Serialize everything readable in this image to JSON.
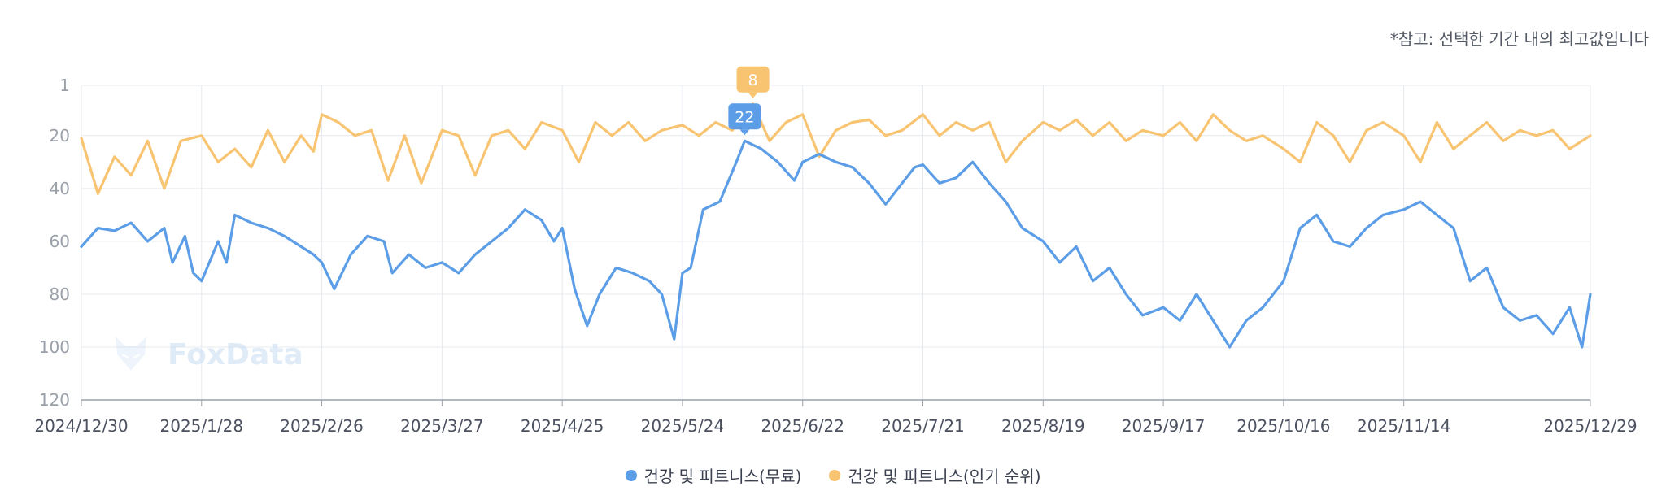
{
  "note": "*참고: 선택한 기간 내의 최고값입니다",
  "watermark": "FoxData",
  "chart_data": {
    "type": "line",
    "x_range": [
      "2024/12/30",
      "2025/12/29"
    ],
    "x_ticks": [
      "2024/12/30",
      "2025/1/28",
      "2025/2/26",
      "2025/3/27",
      "2025/4/25",
      "2025/5/24",
      "2025/6/22",
      "2025/7/21",
      "2025/8/19",
      "2025/9/17",
      "2025/10/16",
      "2025/11/14",
      "2025/12/29"
    ],
    "y_ticks": [
      1,
      20,
      40,
      60,
      80,
      100,
      120
    ],
    "ylim": [
      120,
      1
    ],
    "y_reversed": true,
    "grid": true,
    "legend_position": "bottom-center",
    "series": [
      {
        "name": "건강 및 피트니스(무료)",
        "color": "#5b9de6",
        "points": [
          [
            "2024/12/30",
            62
          ],
          [
            "2025/1/3",
            55
          ],
          [
            "2025/1/7",
            56
          ],
          [
            "2025/1/11",
            53
          ],
          [
            "2025/1/15",
            60
          ],
          [
            "2025/1/19",
            55
          ],
          [
            "2025/1/21",
            68
          ],
          [
            "2025/1/24",
            58
          ],
          [
            "2025/1/26",
            72
          ],
          [
            "2025/1/28",
            75
          ],
          [
            "2025/2/1",
            60
          ],
          [
            "2025/2/3",
            68
          ],
          [
            "2025/2/5",
            50
          ],
          [
            "2025/2/9",
            53
          ],
          [
            "2025/2/13",
            55
          ],
          [
            "2025/2/17",
            58
          ],
          [
            "2025/2/21",
            62
          ],
          [
            "2025/2/24",
            65
          ],
          [
            "2025/2/26",
            68
          ],
          [
            "2025/3/1",
            78
          ],
          [
            "2025/3/5",
            65
          ],
          [
            "2025/3/9",
            58
          ],
          [
            "2025/3/13",
            60
          ],
          [
            "2025/3/15",
            72
          ],
          [
            "2025/3/19",
            65
          ],
          [
            "2025/3/23",
            70
          ],
          [
            "2025/3/27",
            68
          ],
          [
            "2025/3/31",
            72
          ],
          [
            "2025/4/4",
            65
          ],
          [
            "2025/4/8",
            60
          ],
          [
            "2025/4/12",
            55
          ],
          [
            "2025/4/16",
            48
          ],
          [
            "2025/4/20",
            52
          ],
          [
            "2025/4/23",
            60
          ],
          [
            "2025/4/25",
            55
          ],
          [
            "2025/4/28",
            78
          ],
          [
            "2025/5/1",
            92
          ],
          [
            "2025/5/4",
            80
          ],
          [
            "2025/5/8",
            70
          ],
          [
            "2025/5/12",
            72
          ],
          [
            "2025/5/16",
            75
          ],
          [
            "2025/5/19",
            80
          ],
          [
            "2025/5/22",
            97
          ],
          [
            "2025/5/24",
            72
          ],
          [
            "2025/5/26",
            70
          ],
          [
            "2025/5/29",
            48
          ],
          [
            "2025/6/2",
            45
          ],
          [
            "2025/6/6",
            30
          ],
          [
            "2025/6/8",
            22
          ],
          [
            "2025/6/12",
            25
          ],
          [
            "2025/6/16",
            30
          ],
          [
            "2025/6/20",
            37
          ],
          [
            "2025/6/22",
            30
          ],
          [
            "2025/6/26",
            27
          ],
          [
            "2025/6/30",
            30
          ],
          [
            "2025/7/4",
            32
          ],
          [
            "2025/7/8",
            38
          ],
          [
            "2025/7/12",
            46
          ],
          [
            "2025/7/16",
            38
          ],
          [
            "2025/7/19",
            32
          ],
          [
            "2025/7/21",
            31
          ],
          [
            "2025/7/25",
            38
          ],
          [
            "2025/7/29",
            36
          ],
          [
            "2025/8/2",
            30
          ],
          [
            "2025/8/6",
            38
          ],
          [
            "2025/8/10",
            45
          ],
          [
            "2025/8/14",
            55
          ],
          [
            "2025/8/19",
            60
          ],
          [
            "2025/8/23",
            68
          ],
          [
            "2025/8/27",
            62
          ],
          [
            "2025/8/31",
            75
          ],
          [
            "2025/9/4",
            70
          ],
          [
            "2025/9/8",
            80
          ],
          [
            "2025/9/12",
            88
          ],
          [
            "2025/9/17",
            85
          ],
          [
            "2025/9/21",
            90
          ],
          [
            "2025/9/25",
            80
          ],
          [
            "2025/9/29",
            90
          ],
          [
            "2025/10/3",
            100
          ],
          [
            "2025/10/7",
            90
          ],
          [
            "2025/10/11",
            85
          ],
          [
            "2025/10/16",
            75
          ],
          [
            "2025/10/20",
            55
          ],
          [
            "2025/10/24",
            50
          ],
          [
            "2025/10/28",
            60
          ],
          [
            "2025/11/1",
            62
          ],
          [
            "2025/11/5",
            55
          ],
          [
            "2025/11/9",
            50
          ],
          [
            "2025/11/14",
            48
          ],
          [
            "2025/11/18",
            45
          ],
          [
            "2025/11/22",
            50
          ],
          [
            "2025/11/26",
            55
          ],
          [
            "2025/11/30",
            75
          ],
          [
            "2025/12/4",
            70
          ],
          [
            "2025/12/8",
            85
          ],
          [
            "2025/12/12",
            90
          ],
          [
            "2025/12/16",
            88
          ],
          [
            "2025/12/20",
            95
          ],
          [
            "2025/12/24",
            85
          ],
          [
            "2025/12/27",
            100
          ],
          [
            "2025/12/29",
            80
          ]
        ]
      },
      {
        "name": "건강 및 피트니스(인기 순위)",
        "color": "#f8c471",
        "points": [
          [
            "2024/12/30",
            21
          ],
          [
            "2025/1/3",
            42
          ],
          [
            "2025/1/7",
            28
          ],
          [
            "2025/1/11",
            35
          ],
          [
            "2025/1/15",
            22
          ],
          [
            "2025/1/19",
            40
          ],
          [
            "2025/1/23",
            22
          ],
          [
            "2025/1/28",
            20
          ],
          [
            "2025/2/1",
            30
          ],
          [
            "2025/2/5",
            25
          ],
          [
            "2025/2/9",
            32
          ],
          [
            "2025/2/13",
            18
          ],
          [
            "2025/2/17",
            30
          ],
          [
            "2025/2/21",
            20
          ],
          [
            "2025/2/24",
            26
          ],
          [
            "2025/2/26",
            12
          ],
          [
            "2025/3/2",
            15
          ],
          [
            "2025/3/6",
            20
          ],
          [
            "2025/3/10",
            18
          ],
          [
            "2025/3/14",
            37
          ],
          [
            "2025/3/18",
            20
          ],
          [
            "2025/3/22",
            38
          ],
          [
            "2025/3/27",
            18
          ],
          [
            "2025/3/31",
            20
          ],
          [
            "2025/4/4",
            35
          ],
          [
            "2025/4/8",
            20
          ],
          [
            "2025/4/12",
            18
          ],
          [
            "2025/4/16",
            25
          ],
          [
            "2025/4/20",
            15
          ],
          [
            "2025/4/25",
            18
          ],
          [
            "2025/4/29",
            30
          ],
          [
            "2025/5/3",
            15
          ],
          [
            "2025/5/7",
            20
          ],
          [
            "2025/5/11",
            15
          ],
          [
            "2025/5/15",
            22
          ],
          [
            "2025/5/19",
            18
          ],
          [
            "2025/5/24",
            16
          ],
          [
            "2025/5/28",
            20
          ],
          [
            "2025/6/1",
            15
          ],
          [
            "2025/6/5",
            18
          ],
          [
            "2025/6/10",
            8
          ],
          [
            "2025/6/14",
            22
          ],
          [
            "2025/6/18",
            15
          ],
          [
            "2025/6/22",
            12
          ],
          [
            "2025/6/26",
            28
          ],
          [
            "2025/6/30",
            18
          ],
          [
            "2025/7/4",
            15
          ],
          [
            "2025/7/8",
            14
          ],
          [
            "2025/7/12",
            20
          ],
          [
            "2025/7/16",
            18
          ],
          [
            "2025/7/21",
            12
          ],
          [
            "2025/7/25",
            20
          ],
          [
            "2025/7/29",
            15
          ],
          [
            "2025/8/2",
            18
          ],
          [
            "2025/8/6",
            15
          ],
          [
            "2025/8/10",
            30
          ],
          [
            "2025/8/14",
            22
          ],
          [
            "2025/8/19",
            15
          ],
          [
            "2025/8/23",
            18
          ],
          [
            "2025/8/27",
            14
          ],
          [
            "2025/8/31",
            20
          ],
          [
            "2025/9/4",
            15
          ],
          [
            "2025/9/8",
            22
          ],
          [
            "2025/9/12",
            18
          ],
          [
            "2025/9/17",
            20
          ],
          [
            "2025/9/21",
            15
          ],
          [
            "2025/9/25",
            22
          ],
          [
            "2025/9/29",
            12
          ],
          [
            "2025/10/3",
            18
          ],
          [
            "2025/10/7",
            22
          ],
          [
            "2025/10/11",
            20
          ],
          [
            "2025/10/16",
            25
          ],
          [
            "2025/10/20",
            30
          ],
          [
            "2025/10/24",
            15
          ],
          [
            "2025/10/28",
            20
          ],
          [
            "2025/11/1",
            30
          ],
          [
            "2025/11/5",
            18
          ],
          [
            "2025/11/9",
            15
          ],
          [
            "2025/11/14",
            20
          ],
          [
            "2025/11/18",
            30
          ],
          [
            "2025/11/22",
            15
          ],
          [
            "2025/11/26",
            25
          ],
          [
            "2025/11/30",
            20
          ],
          [
            "2025/12/4",
            15
          ],
          [
            "2025/12/8",
            22
          ],
          [
            "2025/12/12",
            18
          ],
          [
            "2025/12/16",
            20
          ],
          [
            "2025/12/20",
            18
          ],
          [
            "2025/12/24",
            25
          ],
          [
            "2025/12/29",
            20
          ]
        ]
      }
    ],
    "annotations": [
      {
        "series": 0,
        "date": "2025/6/8",
        "value": 22,
        "label": "22"
      },
      {
        "series": 1,
        "date": "2025/6/10",
        "value": 8,
        "label": "8"
      }
    ]
  }
}
